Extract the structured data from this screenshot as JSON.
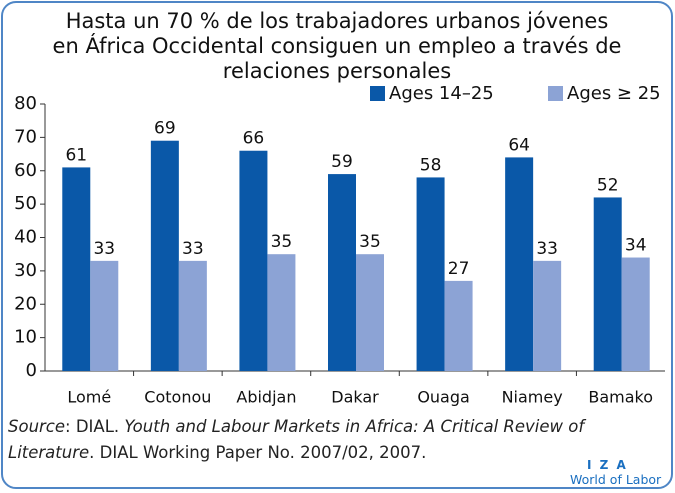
{
  "chart_data": {
    "type": "bar",
    "title": [
      "Hasta un 70 % de los trabajadores urbanos jóvenes",
      "en África Occidental consiguen un empleo a través de",
      "relaciones personales"
    ],
    "categories": [
      "Lomé",
      "Cotonou",
      "Abidjan",
      "Dakar",
      "Ouaga",
      "Niamey",
      "Bamako"
    ],
    "series": [
      {
        "name": "Ages 14–25",
        "color": "#0a58a8",
        "values": [
          61,
          69,
          66,
          59,
          58,
          64,
          52
        ]
      },
      {
        "name": "Ages ≥ 25",
        "color": "#8ca3d5",
        "values": [
          33,
          33,
          35,
          35,
          27,
          33,
          34
        ]
      }
    ],
    "ylim": [
      0,
      80
    ],
    "yticks": [
      0,
      10,
      20,
      30,
      40,
      50,
      60,
      70,
      80
    ],
    "grid": false,
    "legend": "top-right",
    "source": [
      "Source",
      ": DIAL. ",
      "Youth and Labour Markets in Africa: A Critical Review of Literature",
      ". DIAL Working Paper No. 2007/02, 2007."
    ],
    "logo": [
      "I Z A",
      "World of Labor"
    ]
  }
}
